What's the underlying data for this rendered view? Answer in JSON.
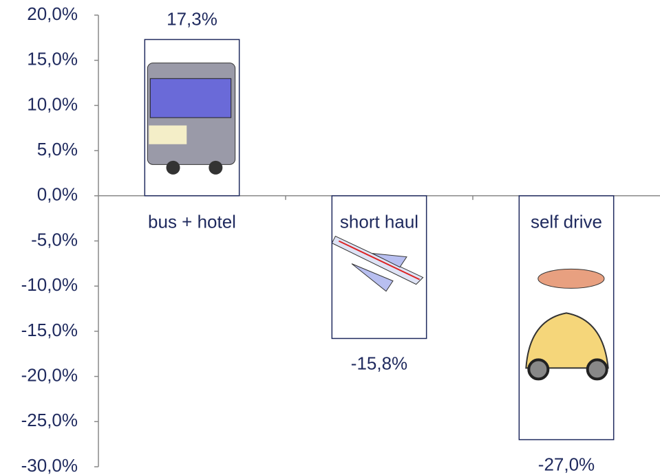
{
  "chart_data": {
    "type": "bar",
    "categories": [
      "bus + hotel",
      "short haul",
      "self drive"
    ],
    "values": [
      17.3,
      -15.8,
      -27.0
    ],
    "value_labels": [
      "17,3%",
      "-15,8%",
      "-27,0%"
    ],
    "color": "#1f2a5e",
    "ylim": [
      -30,
      20
    ],
    "yticks": [
      {
        "value": -30,
        "label": "-30,0%"
      },
      {
        "value": -25,
        "label": "-25,0%"
      },
      {
        "value": -20,
        "label": "-20,0%"
      },
      {
        "value": -15,
        "label": "-15,0%"
      },
      {
        "value": -10,
        "label": "-10,0%"
      },
      {
        "value": -5,
        "label": "-5,0%"
      },
      {
        "value": 0,
        "label": "0,0%"
      },
      {
        "value": 5,
        "label": "5,0%"
      },
      {
        "value": 10,
        "label": "10,0%"
      },
      {
        "value": 15,
        "label": "15,0%"
      },
      {
        "value": 20,
        "label": "20,0%"
      }
    ],
    "grid": false
  }
}
